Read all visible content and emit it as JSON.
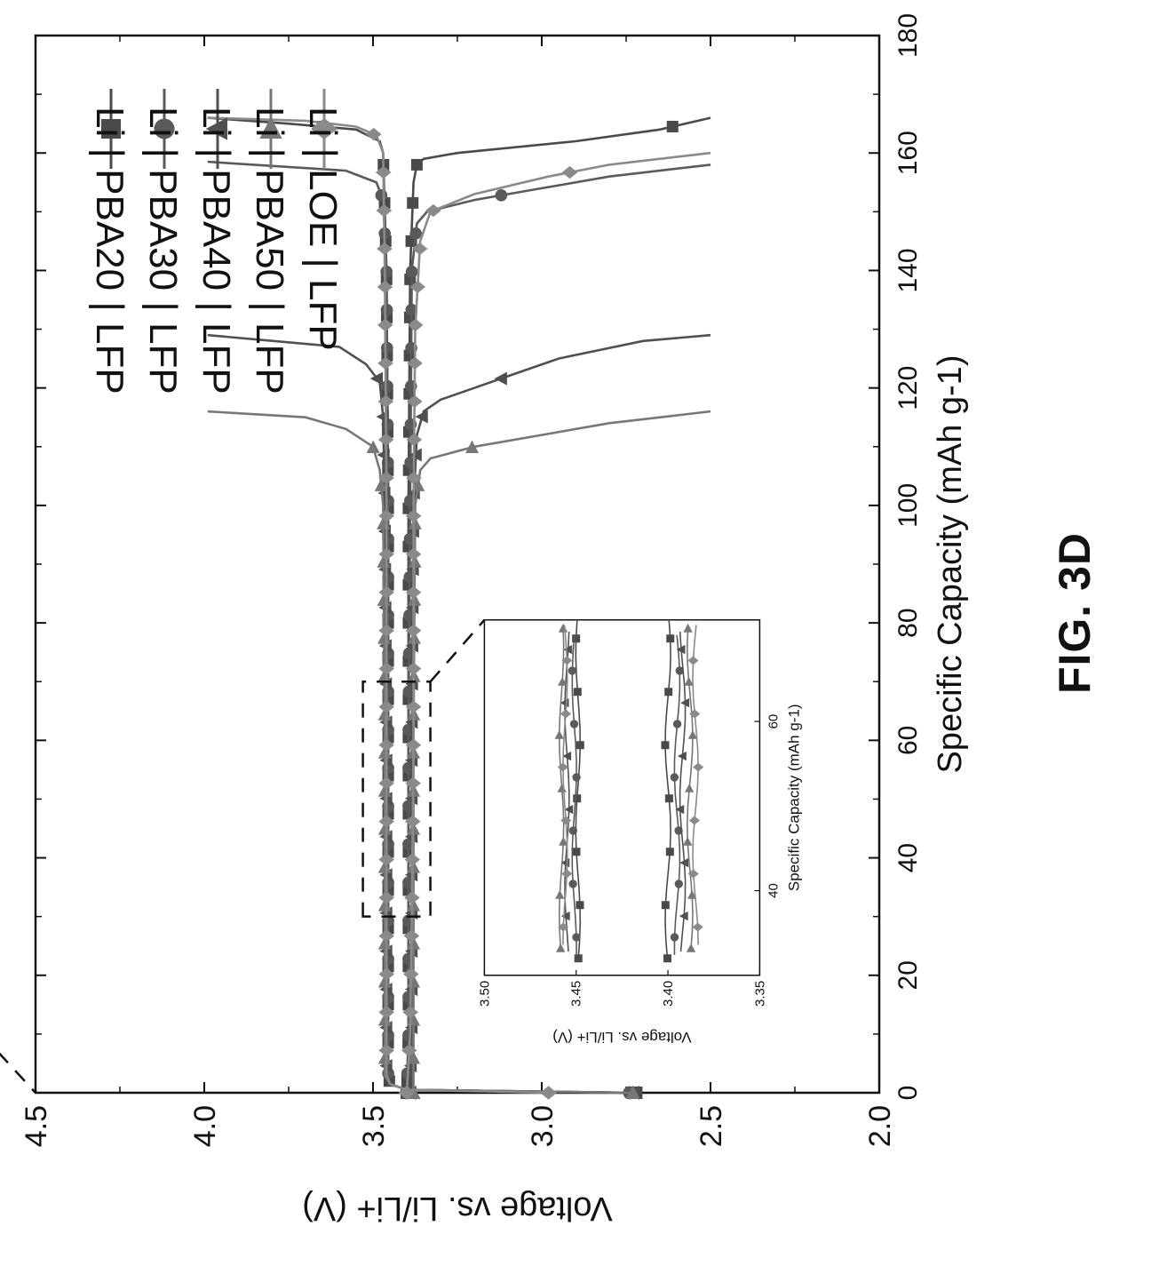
{
  "figure_label": "FIG. 3D",
  "chart_data": [
    {
      "type": "line",
      "title": "",
      "xlabel": "Specific Capacity (mAh g-1)",
      "ylabel": "Voltage vs. Li/Li+ (V)",
      "xlim": [
        0,
        180
      ],
      "ylim": [
        2.0,
        4.5
      ],
      "x_ticks": [
        "0",
        "20",
        "40",
        "60",
        "80",
        "100",
        "120",
        "140",
        "160",
        "180"
      ],
      "y_ticks": [
        "2.0",
        "2.5",
        "3.0",
        "3.5",
        "4.0",
        "4.5"
      ],
      "grid": false,
      "legend_position": "top-left",
      "series": [
        {
          "name": "Li | PBA20 | LFP",
          "marker": "square",
          "color": "#4a4a4a",
          "charge": {
            "x": [
              0,
              0.5,
              1.5,
              3,
              10,
              30,
              60,
              100,
              140,
              160,
              162,
              164,
              165,
              166
            ],
            "y": [
              2.72,
              3.4,
              3.45,
              3.455,
              3.455,
              3.455,
              3.455,
              3.455,
              3.46,
              3.47,
              3.48,
              3.55,
              3.75,
              3.99
            ]
          },
          "discharge": {
            "x": [
              0,
              10,
              30,
              60,
              100,
              140,
              155,
              158,
              159,
              160,
              162,
              164,
              166
            ],
            "y": [
              3.4,
              3.395,
              3.395,
              3.395,
              3.395,
              3.39,
              3.38,
              3.37,
              3.35,
              3.25,
              2.9,
              2.65,
              2.5
            ]
          }
        },
        {
          "name": "Li | PBA30 | LFP",
          "marker": "circle",
          "color": "#5a5a5a",
          "charge": {
            "x": [
              0,
              0.5,
              1.5,
              3,
              10,
              30,
              60,
              100,
              140,
              152,
              155,
              157,
              158.5
            ],
            "y": [
              2.74,
              3.4,
              3.45,
              3.455,
              3.455,
              3.455,
              3.455,
              3.455,
              3.46,
              3.47,
              3.49,
              3.58,
              3.99
            ]
          },
          "discharge": {
            "x": [
              0,
              10,
              30,
              60,
              100,
              140,
              148,
              150,
              152,
              154,
              156,
              158
            ],
            "y": [
              3.4,
              3.395,
              3.395,
              3.395,
              3.39,
              3.385,
              3.37,
              3.34,
              3.2,
              3.0,
              2.8,
              2.5
            ]
          }
        },
        {
          "name": "Li | PBA40 | LFP",
          "marker": "triangle",
          "color": "#505050",
          "charge": {
            "x": [
              0,
              0.5,
              1.5,
              3,
              10,
              30,
              60,
              100,
              115,
              121,
              124,
              127,
              129
            ],
            "y": [
              2.73,
              3.4,
              3.45,
              3.46,
              3.46,
              3.46,
              3.46,
              3.465,
              3.47,
              3.48,
              3.52,
              3.6,
              3.99
            ]
          },
          "discharge": {
            "x": [
              0,
              10,
              30,
              60,
              100,
              112,
              116,
              118,
              120,
              122,
              125,
              128,
              129
            ],
            "y": [
              3.39,
              3.385,
              3.385,
              3.385,
              3.38,
              3.37,
              3.35,
              3.3,
              3.2,
              3.1,
              2.95,
              2.7,
              2.5
            ]
          }
        },
        {
          "name": "Li | PBA50 | LFP",
          "marker": "triangle-right",
          "color": "#777777",
          "charge": {
            "x": [
              0,
              0.5,
              1.5,
              3,
              10,
              30,
              60,
              100,
              106,
              110,
              113,
              115,
              116
            ],
            "y": [
              2.73,
              3.4,
              3.45,
              3.465,
              3.465,
              3.465,
              3.465,
              3.47,
              3.48,
              3.5,
              3.58,
              3.7,
              3.99
            ]
          },
          "discharge": {
            "x": [
              0,
              10,
              30,
              60,
              100,
              106,
              108,
              110,
              112,
              114,
              116
            ],
            "y": [
              3.38,
              3.38,
              3.38,
              3.38,
              3.375,
              3.36,
              3.33,
              3.2,
              3.0,
              2.8,
              2.5
            ]
          }
        },
        {
          "name": "Li | LOE | LFP",
          "marker": "diamond",
          "color": "#8a8a8a",
          "charge": {
            "x": [
              0,
              0.5,
              1.5,
              3,
              10,
              30,
              60,
              100,
              140,
              160,
              163,
              164.5,
              165.5,
              166
            ],
            "y": [
              2.98,
              3.4,
              3.45,
              3.46,
              3.46,
              3.46,
              3.46,
              3.46,
              3.465,
              3.47,
              3.49,
              3.55,
              3.7,
              3.99
            ]
          },
          "discharge": {
            "x": [
              0,
              10,
              30,
              60,
              100,
              130,
              145,
              150,
              153,
              156,
              158,
              160
            ],
            "y": [
              3.4,
              3.39,
              3.385,
              3.38,
              3.38,
              3.375,
              3.36,
              3.33,
              3.2,
              2.98,
              2.8,
              2.5
            ]
          }
        }
      ]
    },
    {
      "type": "line",
      "role": "inset",
      "xlabel": "Specific Capacity (mAh g-1)",
      "ylabel": "Voltage vs. Li/Li+ (V)",
      "xlim": [
        30,
        72
      ],
      "ylim": [
        3.35,
        3.5
      ],
      "x_ticks": [
        "40",
        "60"
      ],
      "y_ticks": [
        "3.50",
        "3.45",
        "3.40",
        "3.35"
      ],
      "series": [
        {
          "name": "Li | PBA20 | LFP",
          "charge_y": 3.449,
          "discharge_y": 3.4
        },
        {
          "name": "Li | PBA30 | LFP",
          "charge_y": 3.451,
          "discharge_y": 3.395
        },
        {
          "name": "Li | PBA40 | LFP",
          "charge_y": 3.455,
          "discharge_y": 3.392
        },
        {
          "name": "Li | PBA50 | LFP",
          "charge_y": 3.458,
          "discharge_y": 3.388
        },
        {
          "name": "Li | LOE | LFP",
          "charge_y": 3.456,
          "discharge_y": 3.385
        }
      ]
    }
  ]
}
